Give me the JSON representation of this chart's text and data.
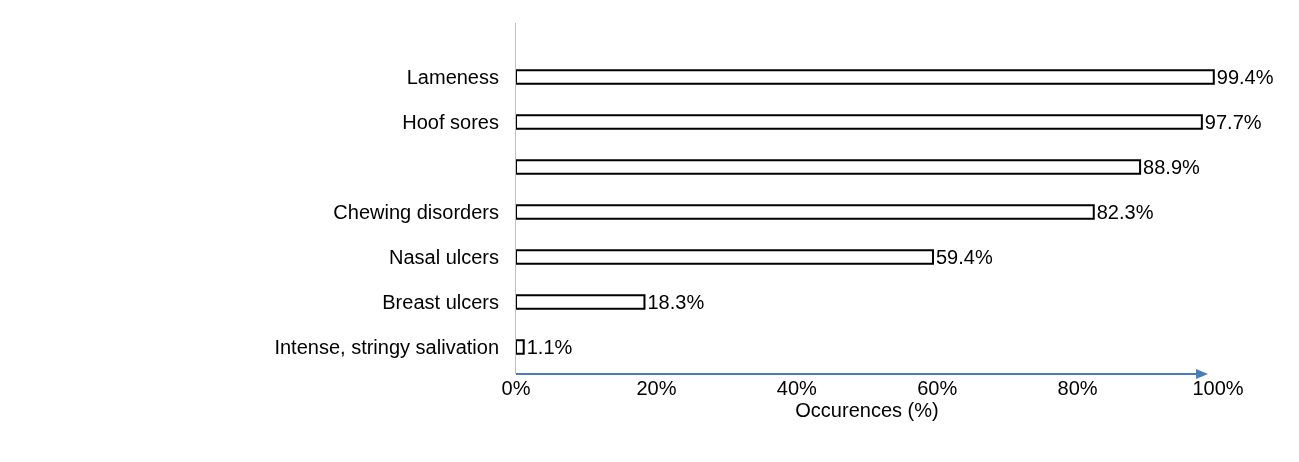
{
  "chart_data": {
    "type": "bar",
    "orientation": "horizontal",
    "xlabel": "Occurences (%)",
    "categories": [
      "Lameness",
      "Hoof sores",
      null,
      "Chewing disorders",
      "Nasal ulcers",
      "Breast ulcers",
      "Intense, stringy salivation"
    ],
    "values": [
      99.4,
      97.7,
      88.9,
      82.3,
      59.4,
      18.3,
      1.1
    ],
    "value_labels": [
      "99.4%",
      "97.7%",
      "88.9%",
      "82.3%",
      "59.4%",
      "18.3%",
      "1.1%"
    ],
    "color": "#ffffff",
    "xlim": [
      0,
      100
    ],
    "xticks": [
      {
        "value": 0,
        "label": "0%"
      },
      {
        "value": 20,
        "label": "20%"
      },
      {
        "value": 40,
        "label": "40%"
      },
      {
        "value": 60,
        "label": "60%"
      },
      {
        "value": 80,
        "label": "80%"
      },
      {
        "value": 100,
        "label": "100%"
      }
    ]
  }
}
